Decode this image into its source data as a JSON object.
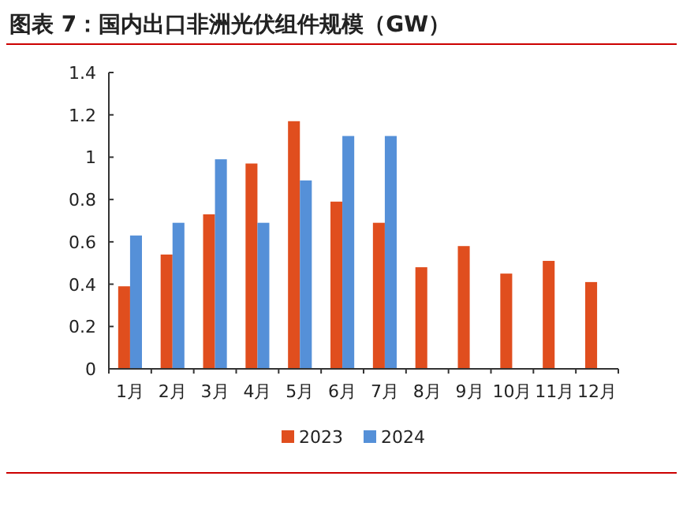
{
  "chart_data": {
    "type": "bar",
    "title": "图表 7：国内出口非洲光伏组件规模（GW）",
    "categories": [
      "1月",
      "2月",
      "3月",
      "4月",
      "5月",
      "6月",
      "7月",
      "8月",
      "9月",
      "10月",
      "11月",
      "12月"
    ],
    "series": [
      {
        "name": "2023",
        "color": "#e04e1e",
        "values": [
          0.39,
          0.54,
          0.73,
          0.97,
          1.17,
          0.79,
          0.69,
          0.48,
          0.58,
          0.45,
          0.51,
          0.41
        ]
      },
      {
        "name": "2024",
        "color": "#5590d8",
        "values": [
          0.63,
          0.69,
          0.99,
          0.69,
          0.89,
          1.1,
          1.1,
          null,
          null,
          null,
          null,
          null
        ]
      }
    ],
    "ylim": [
      0,
      1.4
    ],
    "yticks": [
      0,
      0.2,
      0.4,
      0.6,
      0.8,
      1,
      1.2,
      1.4
    ],
    "grid": false,
    "legend": "bottom"
  }
}
